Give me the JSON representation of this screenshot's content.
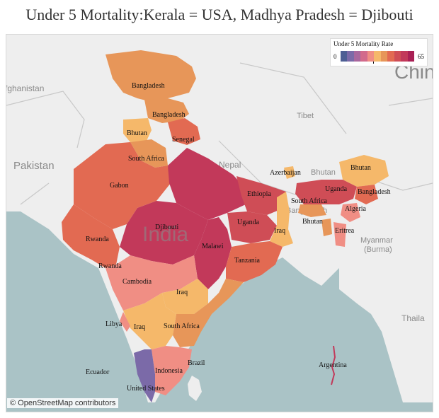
{
  "title": "Under 5 Mortality:Kerala = USA, Madhya Pradesh = Djibouti",
  "legend": {
    "title": "Under 5 Mortality Rate",
    "min": "0",
    "max": "65",
    "colors": [
      "#4e5f94",
      "#7b6aa8",
      "#a9679e",
      "#d26b8c",
      "#f08e84",
      "#f5b86a",
      "#e79659",
      "#e26a52",
      "#cf4d56",
      "#c2395a",
      "#a92055"
    ]
  },
  "attribution": "© OpenStreetMap contributors",
  "background_labels": {
    "afghanistan": "fghanistan",
    "pakistan": "Pakistan",
    "nepal": "Nepal",
    "tibet": "Tibet",
    "china": "Chin",
    "bhutan": "Bhutan",
    "bangladesh": "Bangladesh",
    "myanmar": "Myanmar",
    "burma": "(Burma)",
    "thailand": "Thaila",
    "india": "India"
  },
  "region_labels": [
    "Bangladesh",
    "Bangladesh",
    "Bhutan",
    "Senegal",
    "South Africa",
    "Gabon",
    "Rwanda",
    "Djibouti",
    "Malawi",
    "Ethiopia",
    "Uganda",
    "Iraq",
    "Tanzania",
    "Rwanda",
    "Cambodia",
    "Iraq",
    "Libya",
    "Iraq",
    "South Africa",
    "Brazil",
    "Indonesia",
    "Ecuador",
    "United States",
    "Argentina",
    "Azerbaijan",
    "Bhutan",
    "South Africa",
    "Bhutan",
    "Uganda",
    "Bangladesh",
    "Algeria",
    "Eritrea"
  ]
}
